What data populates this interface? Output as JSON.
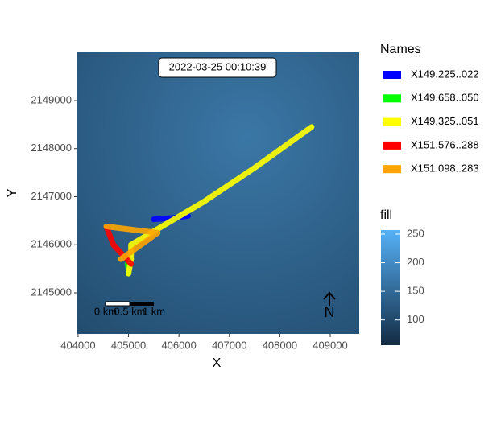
{
  "chart_data": {
    "type": "line",
    "annotation": "2022-03-25 00:10:39",
    "x_label": "X",
    "y_label": "Y",
    "xlim": [
      403985,
      409575
    ],
    "ylim": [
      2144146,
      2150004
    ],
    "xticks": [
      404000,
      405000,
      406000,
      407000,
      408000,
      409000
    ],
    "yticks": [
      2145000,
      2146000,
      2147000,
      2148000,
      2149000
    ],
    "legend_title": "Names",
    "series": [
      {
        "name": "X149.225..022",
        "color": "#0000ff",
        "x": [
          405500,
          405900,
          406180
        ],
        "y": [
          2146530,
          2146560,
          2146600
        ]
      },
      {
        "name": "X149.658..050",
        "color": "#00ff00",
        "x": [
          404980,
          405000,
          405000
        ],
        "y": [
          2145600,
          2145500,
          2145400
        ]
      },
      {
        "name": "X149.325..051",
        "color": "#ffff00",
        "x": [
          405000,
          405050,
          405050,
          406500,
          407500,
          408630
        ],
        "y": [
          2145400,
          2145700,
          2146000,
          2146900,
          2147600,
          2148450
        ]
      },
      {
        "name": "X151.576..288",
        "color": "#ff0000",
        "x": [
          404560,
          404700,
          405050
        ],
        "y": [
          2146380,
          2146000,
          2145600
        ]
      },
      {
        "name": "X151.098..283",
        "color": "#ffa500",
        "x": [
          404560,
          405580,
          404850
        ],
        "y": [
          2146380,
          2146250,
          2145700
        ]
      }
    ],
    "fill_title": "fill",
    "fill_lim": [
      56,
      257
    ],
    "fill_ticks": [
      100,
      150,
      200,
      250
    ],
    "fill_colors": [
      "#132b43",
      "#56b1f7"
    ],
    "scale_labels": [
      "0 km",
      "0.5 km",
      "1 km"
    ],
    "north": "N"
  }
}
